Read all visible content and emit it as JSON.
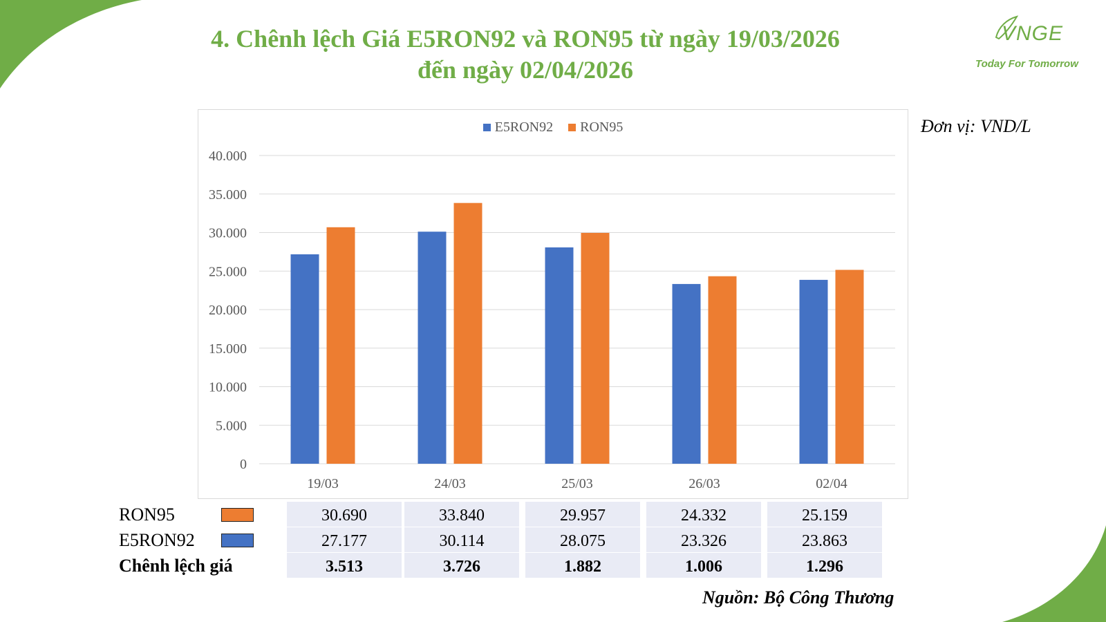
{
  "title": {
    "line1": "4. Chênh lệch Giá E5RON92 và RON95 từ ngày 19/03/2026",
    "line2": "đến ngày 02/04/2026"
  },
  "logo": {
    "mark": "VNGE",
    "tagline": "Today For Tomorrow"
  },
  "unit_label": "Đơn vị: VND/L",
  "source_label": "Nguồn: Bộ Công Thương",
  "colors": {
    "title": "#70ad47",
    "e5ron92": "#4472c4",
    "ron95": "#ed7d31",
    "table_band": "#e9ebf5"
  },
  "chart_data": {
    "type": "bar",
    "categories": [
      "19/03",
      "24/03",
      "25/03",
      "26/03",
      "02/04"
    ],
    "series": [
      {
        "name": "E5RON92",
        "color": "#4472c4",
        "values": [
          27177,
          30114,
          28075,
          23326,
          23863
        ]
      },
      {
        "name": "RON95",
        "color": "#ed7d31",
        "values": [
          30690,
          33840,
          29957,
          24332,
          25159
        ]
      }
    ],
    "ylim": [
      0,
      40000
    ],
    "yticks": [
      "0",
      "5.000",
      "10.000",
      "15.000",
      "20.000",
      "25.000",
      "30.000",
      "35.000",
      "40.000"
    ],
    "grid": true,
    "legend": "top-center"
  },
  "table": {
    "rows": [
      {
        "label": "RON95",
        "swatch": "#ed7d31",
        "bold": false,
        "cells": [
          "30.690",
          "33.840",
          "29.957",
          "24.332",
          "25.159"
        ]
      },
      {
        "label": "E5RON92",
        "swatch": "#4472c4",
        "bold": false,
        "cells": [
          "27.177",
          "30.114",
          "28.075",
          "23.326",
          "23.863"
        ]
      },
      {
        "label": "Chênh lệch giá",
        "swatch": null,
        "bold": true,
        "cells": [
          "3.513",
          "3.726",
          "1.882",
          "1.006",
          "1.296"
        ]
      }
    ]
  }
}
